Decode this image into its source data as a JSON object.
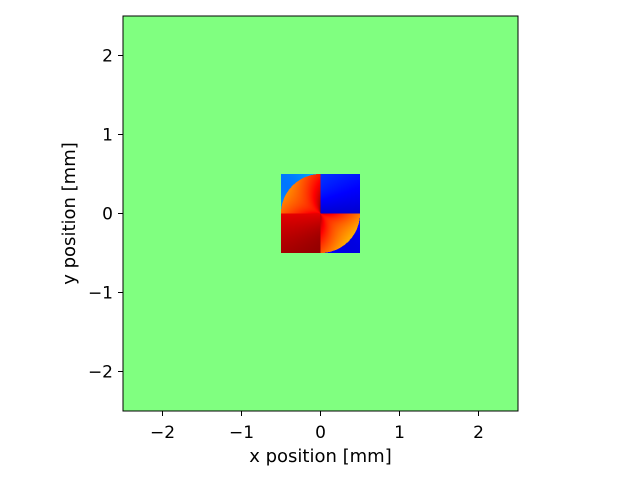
{
  "chart_data": {
    "type": "heatmap",
    "title": "",
    "xlabel": "x position [mm]",
    "ylabel": "y position [mm]",
    "xlim": [
      -2.5,
      2.5
    ],
    "ylim": [
      -2.5,
      2.5
    ],
    "xticks": [
      -2,
      -1,
      0,
      1,
      2
    ],
    "yticks": [
      -2,
      -1,
      0,
      1,
      2
    ],
    "xtick_labels": [
      "−2",
      "−1",
      "0",
      "1",
      "2"
    ],
    "ytick_labels": [
      "−2",
      "−1",
      "0",
      "1",
      "2"
    ],
    "colormap": "jet",
    "background_color": "#80ff80",
    "grid": false,
    "aperture": {
      "quadrant_half_size_mm": 0.5,
      "disc_radius_mm": 0.5,
      "pattern": "four-quadrant spiral phase"
    }
  }
}
